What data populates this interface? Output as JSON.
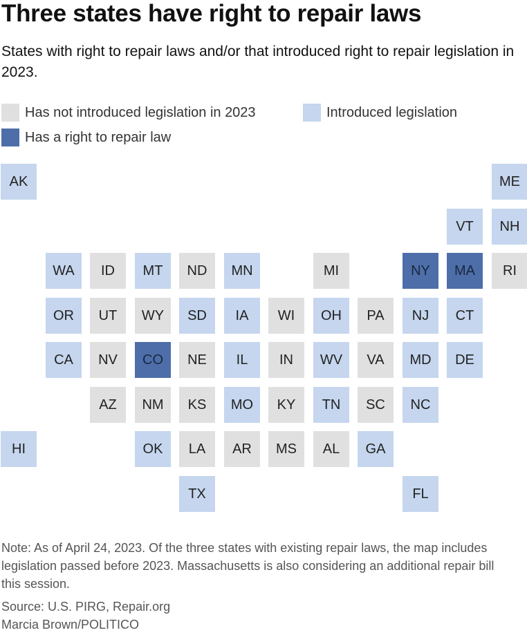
{
  "title": "Three states have right to repair laws",
  "subtitle": "States with right to repair laws and/or that introduced right to repair legislation in 2023.",
  "colors": {
    "none": "#e0e0e0",
    "introduced": "#c5d6ee",
    "law": "#4d6ea8"
  },
  "legend": [
    {
      "key": "none",
      "label": "Has not introduced legislation in 2023"
    },
    {
      "key": "introduced",
      "label": "Introduced legislation"
    },
    {
      "key": "law",
      "label": "Has a right to repair law"
    }
  ],
  "states": [
    {
      "code": "AK",
      "status": "introduced",
      "col": 0,
      "row": 0
    },
    {
      "code": "ME",
      "status": "introduced",
      "col": 11,
      "row": 0
    },
    {
      "code": "VT",
      "status": "introduced",
      "col": 10,
      "row": 1
    },
    {
      "code": "NH",
      "status": "introduced",
      "col": 11,
      "row": 1
    },
    {
      "code": "WA",
      "status": "introduced",
      "col": 1,
      "row": 2
    },
    {
      "code": "ID",
      "status": "none",
      "col": 2,
      "row": 2
    },
    {
      "code": "MT",
      "status": "introduced",
      "col": 3,
      "row": 2
    },
    {
      "code": "ND",
      "status": "none",
      "col": 4,
      "row": 2
    },
    {
      "code": "MN",
      "status": "introduced",
      "col": 5,
      "row": 2
    },
    {
      "code": "MI",
      "status": "none",
      "col": 7,
      "row": 2
    },
    {
      "code": "NY",
      "status": "law",
      "col": 9,
      "row": 2
    },
    {
      "code": "MA",
      "status": "law",
      "col": 10,
      "row": 2
    },
    {
      "code": "RI",
      "status": "none",
      "col": 11,
      "row": 2
    },
    {
      "code": "OR",
      "status": "introduced",
      "col": 1,
      "row": 3
    },
    {
      "code": "UT",
      "status": "none",
      "col": 2,
      "row": 3
    },
    {
      "code": "WY",
      "status": "none",
      "col": 3,
      "row": 3
    },
    {
      "code": "SD",
      "status": "introduced",
      "col": 4,
      "row": 3
    },
    {
      "code": "IA",
      "status": "introduced",
      "col": 5,
      "row": 3
    },
    {
      "code": "WI",
      "status": "none",
      "col": 6,
      "row": 3
    },
    {
      "code": "OH",
      "status": "introduced",
      "col": 7,
      "row": 3
    },
    {
      "code": "PA",
      "status": "none",
      "col": 8,
      "row": 3
    },
    {
      "code": "NJ",
      "status": "introduced",
      "col": 9,
      "row": 3
    },
    {
      "code": "CT",
      "status": "introduced",
      "col": 10,
      "row": 3
    },
    {
      "code": "CA",
      "status": "introduced",
      "col": 1,
      "row": 4
    },
    {
      "code": "NV",
      "status": "none",
      "col": 2,
      "row": 4
    },
    {
      "code": "CO",
      "status": "law",
      "col": 3,
      "row": 4
    },
    {
      "code": "NE",
      "status": "none",
      "col": 4,
      "row": 4
    },
    {
      "code": "IL",
      "status": "introduced",
      "col": 5,
      "row": 4
    },
    {
      "code": "IN",
      "status": "none",
      "col": 6,
      "row": 4
    },
    {
      "code": "WV",
      "status": "introduced",
      "col": 7,
      "row": 4
    },
    {
      "code": "VA",
      "status": "none",
      "col": 8,
      "row": 4
    },
    {
      "code": "MD",
      "status": "introduced",
      "col": 9,
      "row": 4
    },
    {
      "code": "DE",
      "status": "introduced",
      "col": 10,
      "row": 4
    },
    {
      "code": "AZ",
      "status": "none",
      "col": 2,
      "row": 5
    },
    {
      "code": "NM",
      "status": "none",
      "col": 3,
      "row": 5
    },
    {
      "code": "KS",
      "status": "none",
      "col": 4,
      "row": 5
    },
    {
      "code": "MO",
      "status": "introduced",
      "col": 5,
      "row": 5
    },
    {
      "code": "KY",
      "status": "none",
      "col": 6,
      "row": 5
    },
    {
      "code": "TN",
      "status": "introduced",
      "col": 7,
      "row": 5
    },
    {
      "code": "SC",
      "status": "none",
      "col": 8,
      "row": 5
    },
    {
      "code": "NC",
      "status": "introduced",
      "col": 9,
      "row": 5
    },
    {
      "code": "HI",
      "status": "introduced",
      "col": 0,
      "row": 6
    },
    {
      "code": "OK",
      "status": "introduced",
      "col": 3,
      "row": 6
    },
    {
      "code": "LA",
      "status": "none",
      "col": 4,
      "row": 6
    },
    {
      "code": "AR",
      "status": "none",
      "col": 5,
      "row": 6
    },
    {
      "code": "MS",
      "status": "none",
      "col": 6,
      "row": 6
    },
    {
      "code": "AL",
      "status": "none",
      "col": 7,
      "row": 6
    },
    {
      "code": "GA",
      "status": "introduced",
      "col": 8,
      "row": 6
    },
    {
      "code": "TX",
      "status": "introduced",
      "col": 4,
      "row": 7
    },
    {
      "code": "FL",
      "status": "introduced",
      "col": 9,
      "row": 7
    }
  ],
  "note": "Note: As of April 24, 2023. Of the three states with existing repair laws, the map includes legislation passed before 2023. Massachusetts is also considering an additional repair bill this session.",
  "source": "Source: U.S. PIRG, Repair.org",
  "credit": "Marcia Brown/POLITICO"
}
